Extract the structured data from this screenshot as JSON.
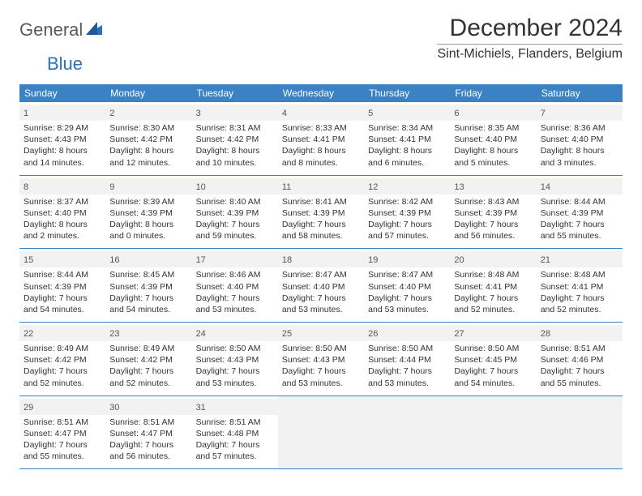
{
  "brand": {
    "general": "General",
    "blue": "Blue"
  },
  "title": "December 2024",
  "location": "Sint-Michiels, Flanders, Belgium",
  "colors": {
    "header_bg": "#3b82c4",
    "header_text": "#ffffff",
    "border": "#3b82c4",
    "daynum_bg": "#f2f2f2",
    "text": "#333333",
    "logo_gray": "#5a5a5a",
    "logo_blue": "#2a71b8"
  },
  "dayHeaders": [
    "Sunday",
    "Monday",
    "Tuesday",
    "Wednesday",
    "Thursday",
    "Friday",
    "Saturday"
  ],
  "weeks": [
    [
      {
        "n": "1",
        "sr": "8:29 AM",
        "ss": "4:43 PM",
        "dl": "8 hours and 14 minutes."
      },
      {
        "n": "2",
        "sr": "8:30 AM",
        "ss": "4:42 PM",
        "dl": "8 hours and 12 minutes."
      },
      {
        "n": "3",
        "sr": "8:31 AM",
        "ss": "4:42 PM",
        "dl": "8 hours and 10 minutes."
      },
      {
        "n": "4",
        "sr": "8:33 AM",
        "ss": "4:41 PM",
        "dl": "8 hours and 8 minutes."
      },
      {
        "n": "5",
        "sr": "8:34 AM",
        "ss": "4:41 PM",
        "dl": "8 hours and 6 minutes."
      },
      {
        "n": "6",
        "sr": "8:35 AM",
        "ss": "4:40 PM",
        "dl": "8 hours and 5 minutes."
      },
      {
        "n": "7",
        "sr": "8:36 AM",
        "ss": "4:40 PM",
        "dl": "8 hours and 3 minutes."
      }
    ],
    [
      {
        "n": "8",
        "sr": "8:37 AM",
        "ss": "4:40 PM",
        "dl": "8 hours and 2 minutes."
      },
      {
        "n": "9",
        "sr": "8:39 AM",
        "ss": "4:39 PM",
        "dl": "8 hours and 0 minutes."
      },
      {
        "n": "10",
        "sr": "8:40 AM",
        "ss": "4:39 PM",
        "dl": "7 hours and 59 minutes."
      },
      {
        "n": "11",
        "sr": "8:41 AM",
        "ss": "4:39 PM",
        "dl": "7 hours and 58 minutes."
      },
      {
        "n": "12",
        "sr": "8:42 AM",
        "ss": "4:39 PM",
        "dl": "7 hours and 57 minutes."
      },
      {
        "n": "13",
        "sr": "8:43 AM",
        "ss": "4:39 PM",
        "dl": "7 hours and 56 minutes."
      },
      {
        "n": "14",
        "sr": "8:44 AM",
        "ss": "4:39 PM",
        "dl": "7 hours and 55 minutes."
      }
    ],
    [
      {
        "n": "15",
        "sr": "8:44 AM",
        "ss": "4:39 PM",
        "dl": "7 hours and 54 minutes."
      },
      {
        "n": "16",
        "sr": "8:45 AM",
        "ss": "4:39 PM",
        "dl": "7 hours and 54 minutes."
      },
      {
        "n": "17",
        "sr": "8:46 AM",
        "ss": "4:40 PM",
        "dl": "7 hours and 53 minutes."
      },
      {
        "n": "18",
        "sr": "8:47 AM",
        "ss": "4:40 PM",
        "dl": "7 hours and 53 minutes."
      },
      {
        "n": "19",
        "sr": "8:47 AM",
        "ss": "4:40 PM",
        "dl": "7 hours and 53 minutes."
      },
      {
        "n": "20",
        "sr": "8:48 AM",
        "ss": "4:41 PM",
        "dl": "7 hours and 52 minutes."
      },
      {
        "n": "21",
        "sr": "8:48 AM",
        "ss": "4:41 PM",
        "dl": "7 hours and 52 minutes."
      }
    ],
    [
      {
        "n": "22",
        "sr": "8:49 AM",
        "ss": "4:42 PM",
        "dl": "7 hours and 52 minutes."
      },
      {
        "n": "23",
        "sr": "8:49 AM",
        "ss": "4:42 PM",
        "dl": "7 hours and 52 minutes."
      },
      {
        "n": "24",
        "sr": "8:50 AM",
        "ss": "4:43 PM",
        "dl": "7 hours and 53 minutes."
      },
      {
        "n": "25",
        "sr": "8:50 AM",
        "ss": "4:43 PM",
        "dl": "7 hours and 53 minutes."
      },
      {
        "n": "26",
        "sr": "8:50 AM",
        "ss": "4:44 PM",
        "dl": "7 hours and 53 minutes."
      },
      {
        "n": "27",
        "sr": "8:50 AM",
        "ss": "4:45 PM",
        "dl": "7 hours and 54 minutes."
      },
      {
        "n": "28",
        "sr": "8:51 AM",
        "ss": "4:46 PM",
        "dl": "7 hours and 55 minutes."
      }
    ],
    [
      {
        "n": "29",
        "sr": "8:51 AM",
        "ss": "4:47 PM",
        "dl": "7 hours and 55 minutes."
      },
      {
        "n": "30",
        "sr": "8:51 AM",
        "ss": "4:47 PM",
        "dl": "7 hours and 56 minutes."
      },
      {
        "n": "31",
        "sr": "8:51 AM",
        "ss": "4:48 PM",
        "dl": "7 hours and 57 minutes."
      },
      null,
      null,
      null,
      null
    ]
  ],
  "labels": {
    "sunrise": "Sunrise:",
    "sunset": "Sunset:",
    "daylight": "Daylight:"
  }
}
